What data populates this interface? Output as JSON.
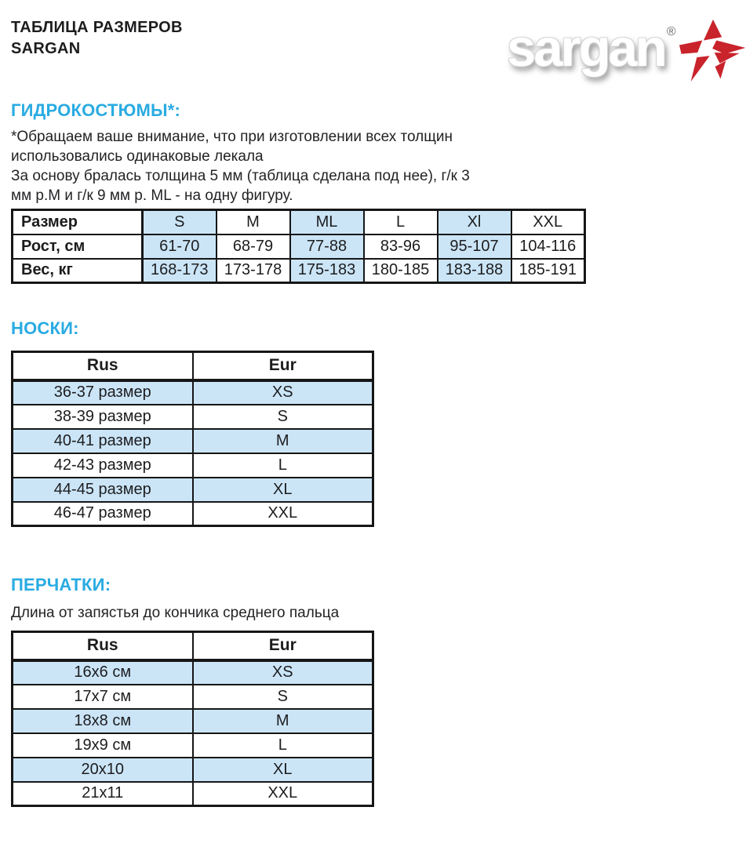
{
  "page": {
    "title_line1": "ТАБЛИЦА РАЗМЕРОВ",
    "title_line2": "SARGAN"
  },
  "logo": {
    "wordmark": "sargan",
    "registered_mark": "®",
    "star_icon": "sargan-star"
  },
  "colors": {
    "accent": "#29abe2",
    "highlight_cell": "#cbe5f7",
    "border": "#161616",
    "logo_red": "#c9232b"
  },
  "wetsuits": {
    "heading": "ГИДРОКОСТЮМЫ*:",
    "note_lines": [
      "*Обращаем ваше внимание, что при изготовлении всех толщин использовались одинаковые лекала",
      "За основу бралась толщина 5 мм (таблица сделана под нее), г/к 3 мм р.М и г/к 9 мм р. ML - на одну фигуру."
    ],
    "table": {
      "columns": [
        "Размер",
        "S",
        "M",
        "ML",
        "L",
        "Xl",
        "XXL"
      ],
      "highlight_columns": [
        1,
        3,
        5
      ],
      "rows": [
        {
          "label": "Рост, см",
          "values": [
            "61-70",
            "68-79",
            "77-88",
            "83-96",
            "95-107",
            "104-116"
          ]
        },
        {
          "label": "Вес, кг",
          "values": [
            "168-173",
            "173-178",
            "175-183",
            "180-185",
            "183-188",
            "185-191"
          ]
        }
      ]
    }
  },
  "socks": {
    "heading": "НОСКИ:",
    "table": {
      "headers": [
        "Rus",
        "Eur"
      ],
      "highlight_rows": [
        0,
        2,
        4
      ],
      "rows": [
        [
          "36-37 размер",
          "XS"
        ],
        [
          "38-39 размер",
          "S"
        ],
        [
          "40-41 размер",
          "M"
        ],
        [
          "42-43 размер",
          "L"
        ],
        [
          "44-45 размер",
          "XL"
        ],
        [
          "46-47 размер",
          "XXL"
        ]
      ]
    }
  },
  "gloves": {
    "heading": "ПЕРЧАТКИ:",
    "note": "Длина от запястья до кончика среднего пальца",
    "table": {
      "headers": [
        "Rus",
        "Eur"
      ],
      "highlight_rows": [
        0,
        2,
        4
      ],
      "rows": [
        [
          "16х6 см",
          "XS"
        ],
        [
          "17х7 см",
          "S"
        ],
        [
          "18х8 см",
          "M"
        ],
        [
          "19х9 см",
          "L"
        ],
        [
          "20х10",
          "XL"
        ],
        [
          "21х11",
          "XXL"
        ]
      ]
    }
  }
}
